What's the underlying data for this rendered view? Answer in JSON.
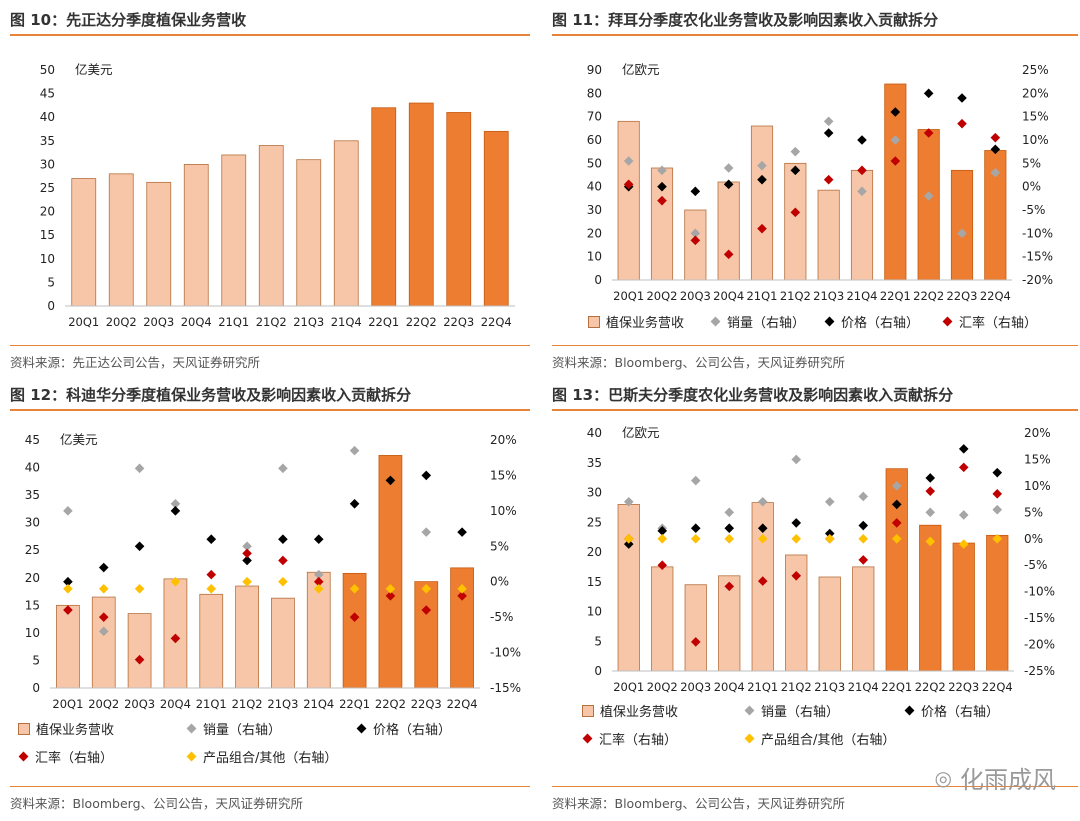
{
  "charts": [
    {
      "figure_title": "图 10：先正达分季度植保业务营收",
      "source": "资料来源：先正达公司公告，天风证券研究所",
      "unit": "亿美元",
      "legend": []
    },
    {
      "figure_title": "图 11：拜耳分季度农化业务营收及影响因素收入贡献拆分",
      "source": "资料来源：Bloomberg、公司公告，天风证券研究所",
      "unit": "亿欧元",
      "legend": [
        "植保业务营收",
        "销量（右轴）",
        "价格（右轴）",
        "汇率（右轴）"
      ]
    },
    {
      "figure_title": "图 12：科迪华分季度植保业务营收及影响因素收入贡献拆分",
      "source": "资料来源：Bloomberg、公司公告，天风证券研究所",
      "unit": "亿美元",
      "legend": [
        "植保业务营收",
        "销量（右轴）",
        "价格（右轴）",
        "汇率（右轴）",
        "产品组合/其他（右轴）"
      ]
    },
    {
      "figure_title": "图 13：巴斯夫分季度农化业务营收及影响因素收入贡献拆分",
      "source": "资料来源：Bloomberg、公司公告，天风证券研究所",
      "unit": "亿欧元",
      "legend": [
        "植保业务营收",
        "销量（右轴）",
        "价格（右轴）",
        "汇率（右轴）",
        "产品组合/其他（右轴）"
      ]
    }
  ],
  "watermark": "化雨成风",
  "colors": {
    "accent": "#e8833a",
    "bar_light": "#f7c6a8",
    "bar_dark": "#ed7d31",
    "volume": "#a6a6a6",
    "price": "#000000",
    "fx": "#c00000",
    "mix": "#ffc000"
  },
  "chart_data": [
    {
      "type": "bar",
      "title": "图 10：先正达分季度植保业务营收",
      "categories": [
        "20Q1",
        "20Q2",
        "20Q3",
        "20Q4",
        "21Q1",
        "21Q2",
        "21Q3",
        "21Q4",
        "22Q1",
        "22Q2",
        "22Q3",
        "22Q4"
      ],
      "values": [
        27,
        28,
        26.2,
        30,
        32,
        34,
        31,
        35,
        42,
        43,
        41,
        37
      ],
      "highlight_from_index": 8,
      "ylabel": "亿美元",
      "ylim": [
        0,
        50
      ],
      "yticks": [
        0,
        5,
        10,
        15,
        20,
        25,
        30,
        35,
        40,
        45,
        50
      ]
    },
    {
      "type": "bar",
      "title": "图 11：拜耳分季度农化业务营收及影响因素收入贡献拆分",
      "categories": [
        "20Q1",
        "20Q2",
        "20Q3",
        "20Q4",
        "21Q1",
        "21Q2",
        "21Q3",
        "21Q4",
        "22Q1",
        "22Q2",
        "22Q3",
        "22Q4"
      ],
      "values": [
        68,
        48,
        30,
        42,
        66,
        50,
        38.5,
        47,
        84,
        64.5,
        47,
        55.5
      ],
      "highlight_from_index": 8,
      "ylabel": "亿欧元",
      "ylim": [
        0,
        90
      ],
      "yticks": [
        0,
        10,
        20,
        30,
        40,
        50,
        60,
        70,
        80,
        90
      ],
      "y2lim": [
        -20,
        25
      ],
      "y2ticks": [
        -20,
        -15,
        -10,
        -5,
        0,
        5,
        10,
        15,
        20,
        25
      ],
      "y2format": "percent",
      "series": [
        {
          "name": "销量（右轴）",
          "values": [
            5.5,
            3.5,
            -10,
            4,
            4.5,
            7.5,
            14,
            -1,
            10,
            -2,
            -10,
            3
          ]
        },
        {
          "name": "价格（右轴）",
          "values": [
            0,
            0,
            -1,
            0.5,
            1.5,
            3.5,
            11.5,
            10,
            16,
            20,
            19,
            8
          ]
        },
        {
          "name": "汇率（右轴）",
          "values": [
            0.5,
            -3,
            -11.5,
            -14.5,
            -9,
            -5.5,
            1.5,
            3.5,
            5.5,
            11.5,
            13.5,
            10.5
          ]
        }
      ]
    },
    {
      "type": "bar",
      "title": "图 12：科迪华分季度植保业务营收及影响因素收入贡献拆分",
      "categories": [
        "20Q1",
        "20Q2",
        "20Q3",
        "20Q4",
        "21Q1",
        "21Q2",
        "21Q3",
        "21Q4",
        "22Q1",
        "22Q2",
        "22Q3",
        "22Q4"
      ],
      "values": [
        15,
        16.5,
        13.5,
        19.8,
        17,
        18.5,
        16.3,
        21,
        20.8,
        42.2,
        19.3,
        21.8
      ],
      "highlight_from_index": 8,
      "ylabel": "亿美元",
      "ylim": [
        0,
        45
      ],
      "yticks": [
        0,
        5,
        10,
        15,
        20,
        25,
        30,
        35,
        40,
        45
      ],
      "y2lim": [
        -15,
        20
      ],
      "y2ticks": [
        -15,
        -10,
        -5,
        0,
        5,
        10,
        15,
        20
      ],
      "y2format": "percent",
      "series": [
        {
          "name": "销量（右轴）",
          "values": [
            10,
            -7,
            16,
            11,
            6,
            5,
            16,
            1,
            18.5,
            null,
            7,
            null
          ]
        },
        {
          "name": "价格（右轴）",
          "values": [
            0,
            2,
            5,
            10,
            6,
            3,
            6,
            6,
            11,
            14.3,
            15,
            7
          ]
        },
        {
          "name": "汇率（右轴）",
          "values": [
            -4,
            -5,
            -11,
            -8,
            1,
            4,
            3,
            0,
            -5,
            -2,
            -4,
            -2
          ]
        },
        {
          "name": "产品组合/其他（右轴）",
          "values": [
            -1,
            -1,
            -1,
            0,
            -1,
            0,
            0,
            -1,
            -1,
            -1,
            -1,
            -1
          ]
        }
      ]
    },
    {
      "type": "bar",
      "title": "图 13：巴斯夫分季度农化业务营收及影响因素收入贡献拆分",
      "categories": [
        "20Q1",
        "20Q2",
        "20Q3",
        "20Q4",
        "21Q1",
        "21Q2",
        "21Q3",
        "21Q4",
        "22Q1",
        "22Q2",
        "22Q3",
        "22Q4"
      ],
      "values": [
        28,
        17.5,
        14.5,
        16,
        28.3,
        19.5,
        15.8,
        17.5,
        34,
        24.5,
        21.5,
        22.8
      ],
      "highlight_from_index": 8,
      "ylabel": "亿欧元",
      "ylim": [
        0,
        40
      ],
      "yticks": [
        0,
        5,
        10,
        15,
        20,
        25,
        30,
        35,
        40
      ],
      "y2lim": [
        -25,
        20
      ],
      "y2ticks": [
        -25,
        -20,
        -15,
        -10,
        -5,
        0,
        5,
        10,
        15,
        20
      ],
      "y2format": "percent",
      "series": [
        {
          "name": "销量（右轴）",
          "values": [
            7,
            2,
            11,
            5,
            7,
            15,
            7,
            8,
            10,
            5,
            4.5,
            5.5
          ]
        },
        {
          "name": "价格（右轴）",
          "values": [
            -1,
            1.5,
            2,
            2,
            2,
            3,
            1,
            2.5,
            6.5,
            11.5,
            17,
            12.5
          ]
        },
        {
          "name": "汇率（右轴）",
          "values": [
            0,
            -5,
            -19.5,
            -9,
            -8,
            -7,
            0,
            -4,
            3,
            9,
            13.5,
            8.5
          ]
        },
        {
          "name": "产品组合/其他（右轴）",
          "values": [
            0,
            0,
            0,
            0,
            0,
            0,
            0,
            0,
            0,
            -0.5,
            -1,
            0
          ]
        }
      ]
    }
  ]
}
